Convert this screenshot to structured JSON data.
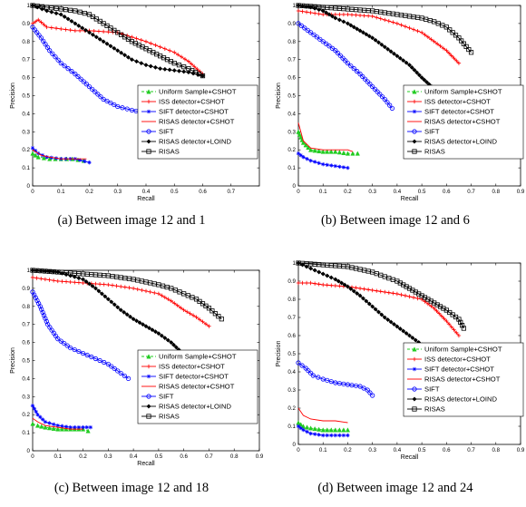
{
  "figure": {
    "legend_entries": [
      {
        "label": "Uniform Sample+CSHOT",
        "color": "#22cc22",
        "marker": "triangle",
        "dash": true
      },
      {
        "label": "ISS detector+CSHOT",
        "color": "#ff0000",
        "marker": "plus",
        "dash": false
      },
      {
        "label": "SIFT detector+CSHOT",
        "color": "#0000ff",
        "marker": "star",
        "dash": false
      },
      {
        "label": "RISAS detector+CSHOT",
        "color": "#ff0000",
        "marker": "none",
        "dash": false
      },
      {
        "label": "SIFT",
        "color": "#0000ff",
        "marker": "circle",
        "dash": false
      },
      {
        "label": "RISAS detector+LOIND",
        "color": "#000000",
        "marker": "diamond",
        "dash": false
      },
      {
        "label": "RISAS",
        "color": "#000000",
        "marker": "square",
        "dash": false
      }
    ]
  },
  "chart_data": [
    {
      "type": "line",
      "caption": "(a) Between image 12 and 1",
      "xlabel": "Recall",
      "ylabel": "Precision",
      "xlim": [
        0,
        0.8
      ],
      "ylim": [
        0,
        1
      ],
      "xticks": [
        "0",
        "0.1",
        "0.2",
        "0.3",
        "0.4",
        "0.5",
        "0.6",
        "0.7"
      ],
      "yticks": [
        "0",
        "0.1",
        "0.2",
        "0.3",
        "0.4",
        "0.5",
        "0.6",
        "0.7",
        "0.8",
        "0.9",
        "1"
      ],
      "legend": "right",
      "series": [
        {
          "name": "Uniform Sample+CSHOT",
          "x": [
            0.0,
            0.02,
            0.06,
            0.1,
            0.14,
            0.18
          ],
          "y": [
            0.18,
            0.16,
            0.15,
            0.15,
            0.15,
            0.14
          ]
        },
        {
          "name": "ISS detector+CSHOT",
          "x": [
            0.0,
            0.02,
            0.05,
            0.1,
            0.15,
            0.2,
            0.3,
            0.4,
            0.45,
            0.5,
            0.55,
            0.6
          ],
          "y": [
            0.9,
            0.92,
            0.88,
            0.87,
            0.86,
            0.86,
            0.85,
            0.8,
            0.77,
            0.74,
            0.69,
            0.62
          ]
        },
        {
          "name": "SIFT detector+CSHOT",
          "x": [
            0.0,
            0.02,
            0.05,
            0.1,
            0.15,
            0.2
          ],
          "y": [
            0.21,
            0.18,
            0.16,
            0.15,
            0.15,
            0.13
          ]
        },
        {
          "name": "RISAS detector+CSHOT",
          "x": [
            0.0,
            0.03,
            0.06,
            0.1,
            0.15,
            0.19
          ],
          "y": [
            0.2,
            0.17,
            0.16,
            0.15,
            0.15,
            0.15
          ]
        },
        {
          "name": "SIFT",
          "x": [
            0.0,
            0.03,
            0.06,
            0.1,
            0.15,
            0.2,
            0.25,
            0.3,
            0.35,
            0.38,
            0.4
          ],
          "y": [
            0.88,
            0.82,
            0.75,
            0.68,
            0.62,
            0.55,
            0.48,
            0.44,
            0.42,
            0.41,
            0.4
          ]
        },
        {
          "name": "RISAS detector+LOIND",
          "x": [
            0.0,
            0.05,
            0.1,
            0.15,
            0.2,
            0.25,
            0.3,
            0.35,
            0.4,
            0.45,
            0.5,
            0.55,
            0.6
          ],
          "y": [
            1.0,
            0.97,
            0.95,
            0.9,
            0.85,
            0.8,
            0.75,
            0.7,
            0.67,
            0.65,
            0.64,
            0.63,
            0.61
          ]
        },
        {
          "name": "RISAS",
          "x": [
            0.0,
            0.05,
            0.1,
            0.15,
            0.2,
            0.25,
            0.3,
            0.35,
            0.4,
            0.45,
            0.5,
            0.55,
            0.6
          ],
          "y": [
            1.0,
            0.99,
            0.98,
            0.97,
            0.95,
            0.9,
            0.85,
            0.8,
            0.76,
            0.72,
            0.68,
            0.65,
            0.61
          ]
        }
      ]
    },
    {
      "type": "line",
      "caption": "(b) Between image 12 and 6",
      "xlabel": "Recall",
      "ylabel": "Precision",
      "xlim": [
        0,
        0.9
      ],
      "ylim": [
        0,
        1
      ],
      "xticks": [
        "0",
        "0.1",
        "0.2",
        "0.3",
        "0.4",
        "0.5",
        "0.6",
        "0.7",
        "0.8",
        "0.9"
      ],
      "yticks": [
        "0",
        "0.1",
        "0.2",
        "0.3",
        "0.4",
        "0.5",
        "0.6",
        "0.7",
        "0.8",
        "0.9",
        "1"
      ],
      "legend": "right",
      "series": [
        {
          "name": "Uniform Sample+CSHOT",
          "x": [
            0.0,
            0.02,
            0.05,
            0.1,
            0.15,
            0.2,
            0.24
          ],
          "y": [
            0.3,
            0.24,
            0.2,
            0.19,
            0.19,
            0.18,
            0.18
          ]
        },
        {
          "name": "ISS detector+CSHOT",
          "x": [
            0.0,
            0.05,
            0.1,
            0.2,
            0.3,
            0.4,
            0.5,
            0.55,
            0.6,
            0.65
          ],
          "y": [
            0.97,
            0.96,
            0.95,
            0.95,
            0.94,
            0.9,
            0.85,
            0.8,
            0.75,
            0.68
          ]
        },
        {
          "name": "SIFT detector+CSHOT",
          "x": [
            0.0,
            0.02,
            0.05,
            0.1,
            0.15,
            0.2
          ],
          "y": [
            0.18,
            0.16,
            0.14,
            0.12,
            0.11,
            0.1
          ]
        },
        {
          "name": "RISAS detector+CSHOT",
          "x": [
            0.0,
            0.02,
            0.05,
            0.1,
            0.15,
            0.2,
            0.22
          ],
          "y": [
            0.35,
            0.25,
            0.21,
            0.2,
            0.2,
            0.2,
            0.19
          ]
        },
        {
          "name": "SIFT",
          "x": [
            0.0,
            0.05,
            0.1,
            0.15,
            0.2,
            0.25,
            0.3,
            0.35,
            0.38
          ],
          "y": [
            0.9,
            0.85,
            0.8,
            0.75,
            0.68,
            0.62,
            0.55,
            0.48,
            0.43
          ]
        },
        {
          "name": "RISAS detector+LOIND",
          "x": [
            0.0,
            0.05,
            0.1,
            0.15,
            0.2,
            0.25,
            0.3,
            0.35,
            0.4,
            0.45,
            0.5,
            0.54
          ],
          "y": [
            1.0,
            0.99,
            0.97,
            0.93,
            0.9,
            0.86,
            0.82,
            0.77,
            0.72,
            0.67,
            0.6,
            0.55
          ]
        },
        {
          "name": "RISAS",
          "x": [
            0.0,
            0.1,
            0.2,
            0.3,
            0.4,
            0.5,
            0.55,
            0.6,
            0.65,
            0.7
          ],
          "y": [
            1.0,
            0.99,
            0.98,
            0.97,
            0.95,
            0.93,
            0.91,
            0.88,
            0.82,
            0.74
          ]
        }
      ]
    },
    {
      "type": "line",
      "caption": "(c) Between image 12 and 18",
      "xlabel": "Recall",
      "ylabel": "Precision",
      "xlim": [
        0,
        0.9
      ],
      "ylim": [
        0,
        1
      ],
      "xticks": [
        "0",
        "0.1",
        "0.2",
        "0.3",
        "0.4",
        "0.5",
        "0.6",
        "0.7",
        "0.8",
        "0.9"
      ],
      "yticks": [
        "0",
        "0.1",
        "0.2",
        "0.3",
        "0.4",
        "0.5",
        "0.6",
        "0.7",
        "0.8",
        "0.9",
        "1"
      ],
      "legend": "right",
      "series": [
        {
          "name": "Uniform Sample+CSHOT",
          "x": [
            0.0,
            0.02,
            0.05,
            0.1,
            0.15,
            0.2,
            0.22
          ],
          "y": [
            0.15,
            0.14,
            0.13,
            0.12,
            0.12,
            0.12,
            0.11
          ]
        },
        {
          "name": "ISS detector+CSHOT",
          "x": [
            0.0,
            0.05,
            0.1,
            0.2,
            0.3,
            0.4,
            0.5,
            0.55,
            0.6,
            0.65,
            0.7
          ],
          "y": [
            0.96,
            0.95,
            0.94,
            0.93,
            0.92,
            0.9,
            0.87,
            0.83,
            0.78,
            0.74,
            0.69
          ]
        },
        {
          "name": "SIFT detector+CSHOT",
          "x": [
            0.0,
            0.02,
            0.05,
            0.1,
            0.15,
            0.2,
            0.23
          ],
          "y": [
            0.25,
            0.2,
            0.16,
            0.14,
            0.13,
            0.13,
            0.13
          ]
        },
        {
          "name": "RISAS detector+CSHOT",
          "x": [
            0.0,
            0.02,
            0.05,
            0.1,
            0.15,
            0.2
          ],
          "y": [
            0.18,
            0.16,
            0.14,
            0.13,
            0.12,
            0.12
          ]
        },
        {
          "name": "SIFT",
          "x": [
            0.0,
            0.03,
            0.06,
            0.1,
            0.15,
            0.2,
            0.25,
            0.3,
            0.35,
            0.38
          ],
          "y": [
            0.88,
            0.8,
            0.7,
            0.62,
            0.57,
            0.54,
            0.51,
            0.48,
            0.43,
            0.4
          ]
        },
        {
          "name": "RISAS detector+LOIND",
          "x": [
            0.0,
            0.1,
            0.15,
            0.2,
            0.25,
            0.3,
            0.35,
            0.4,
            0.45,
            0.5,
            0.55,
            0.58
          ],
          "y": [
            1.0,
            0.99,
            0.97,
            0.95,
            0.9,
            0.84,
            0.78,
            0.73,
            0.69,
            0.65,
            0.6,
            0.56
          ]
        },
        {
          "name": "RISAS",
          "x": [
            0.0,
            0.1,
            0.2,
            0.3,
            0.4,
            0.5,
            0.55,
            0.6,
            0.65,
            0.7,
            0.75
          ],
          "y": [
            1.0,
            0.99,
            0.98,
            0.97,
            0.95,
            0.92,
            0.9,
            0.87,
            0.84,
            0.79,
            0.73
          ]
        }
      ]
    },
    {
      "type": "line",
      "caption": "(d) Between image 12 and 24",
      "xlabel": "Recall",
      "ylabel": "Precision",
      "xlim": [
        0,
        0.9
      ],
      "ylim": [
        0,
        1
      ],
      "xticks": [
        "0",
        "0.1",
        "0.2",
        "0.3",
        "0.4",
        "0.5",
        "0.6",
        "0.7",
        "0.8",
        "0.9"
      ],
      "yticks": [
        "0",
        "0.1",
        "0.2",
        "0.3",
        "0.4",
        "0.5",
        "0.6",
        "0.7",
        "0.8",
        "0.9",
        "1"
      ],
      "legend": "right",
      "series": [
        {
          "name": "Uniform Sample+CSHOT",
          "x": [
            0.0,
            0.02,
            0.05,
            0.1,
            0.15,
            0.2
          ],
          "y": [
            0.12,
            0.1,
            0.09,
            0.08,
            0.08,
            0.08
          ]
        },
        {
          "name": "ISS detector+CSHOT",
          "x": [
            0.0,
            0.05,
            0.1,
            0.2,
            0.3,
            0.4,
            0.5,
            0.55,
            0.6,
            0.65
          ],
          "y": [
            0.89,
            0.89,
            0.88,
            0.87,
            0.85,
            0.83,
            0.8,
            0.75,
            0.68,
            0.6
          ]
        },
        {
          "name": "SIFT detector+CSHOT",
          "x": [
            0.0,
            0.02,
            0.05,
            0.1,
            0.15,
            0.2
          ],
          "y": [
            0.1,
            0.08,
            0.06,
            0.05,
            0.05,
            0.05
          ]
        },
        {
          "name": "RISAS detector+CSHOT",
          "x": [
            0.0,
            0.02,
            0.05,
            0.1,
            0.15,
            0.2
          ],
          "y": [
            0.2,
            0.16,
            0.14,
            0.13,
            0.13,
            0.12
          ]
        },
        {
          "name": "SIFT",
          "x": [
            0.0,
            0.03,
            0.06,
            0.1,
            0.15,
            0.2,
            0.25,
            0.28,
            0.3
          ],
          "y": [
            0.45,
            0.42,
            0.38,
            0.36,
            0.34,
            0.33,
            0.32,
            0.3,
            0.27
          ]
        },
        {
          "name": "RISAS detector+LOIND",
          "x": [
            0.0,
            0.05,
            0.1,
            0.15,
            0.2,
            0.25,
            0.3,
            0.35,
            0.4,
            0.45,
            0.5,
            0.53
          ],
          "y": [
            1.0,
            0.97,
            0.94,
            0.91,
            0.87,
            0.82,
            0.76,
            0.7,
            0.65,
            0.6,
            0.55,
            0.5
          ]
        },
        {
          "name": "RISAS",
          "x": [
            0.0,
            0.1,
            0.2,
            0.3,
            0.4,
            0.45,
            0.5,
            0.55,
            0.6,
            0.65,
            0.67
          ],
          "y": [
            1.0,
            0.99,
            0.98,
            0.95,
            0.9,
            0.86,
            0.82,
            0.78,
            0.74,
            0.69,
            0.64
          ]
        }
      ]
    }
  ]
}
